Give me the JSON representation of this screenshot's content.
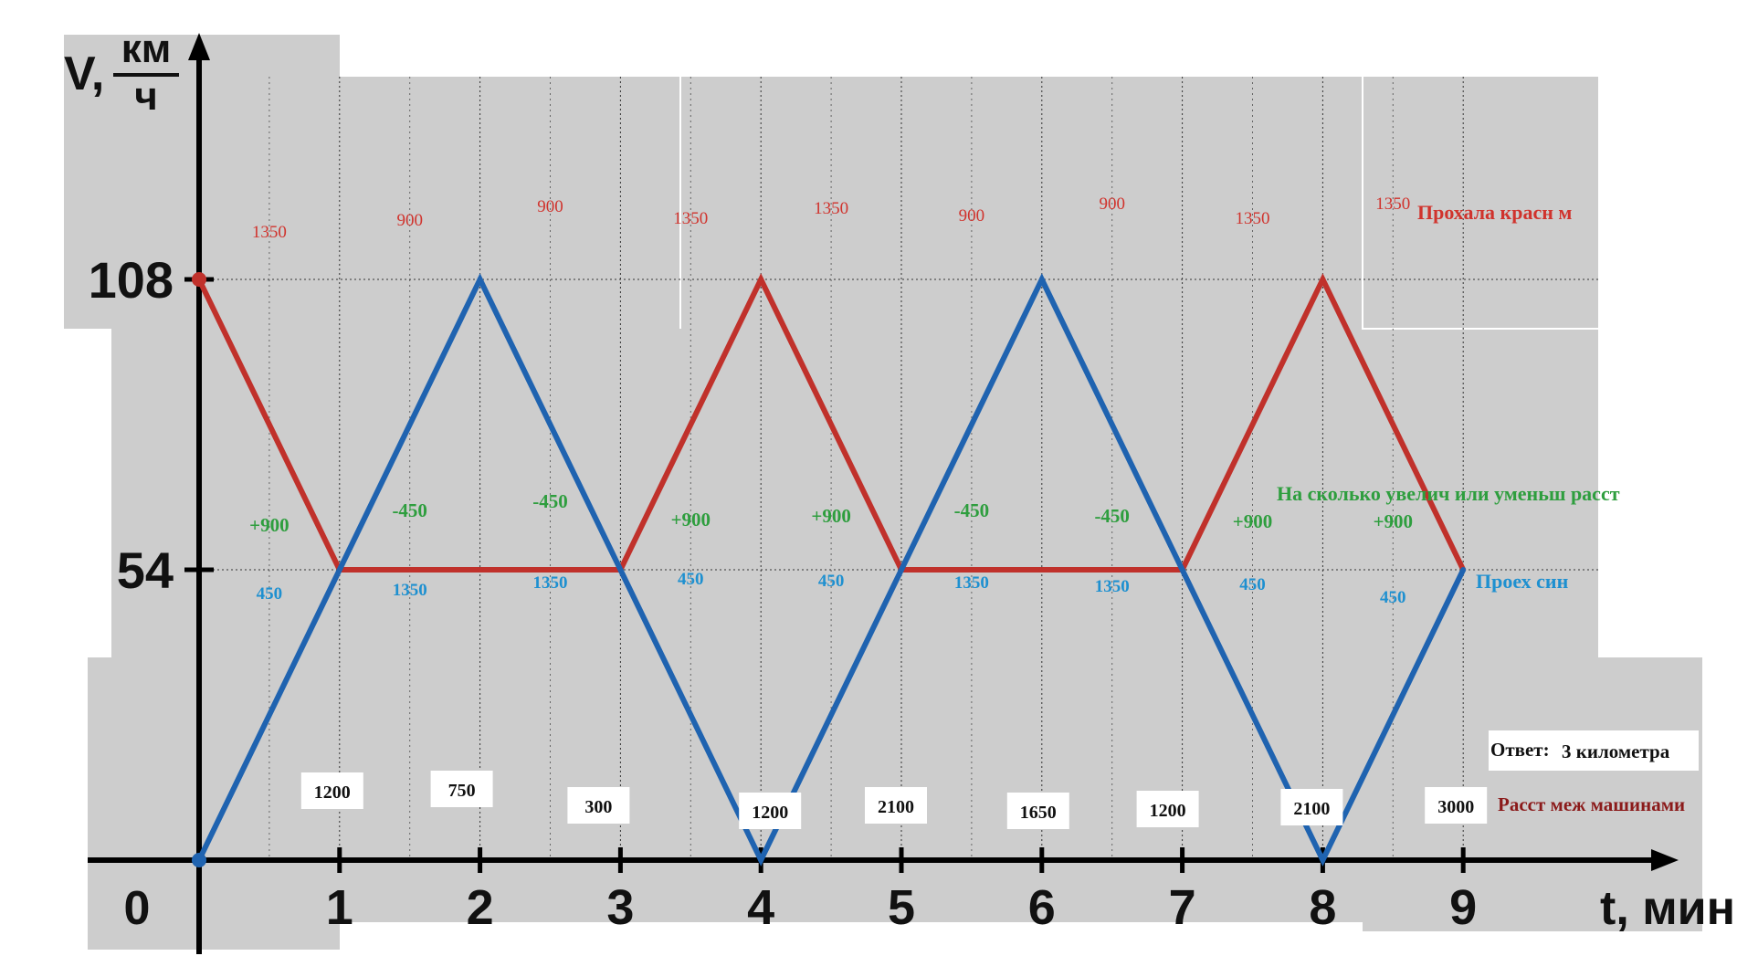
{
  "chart_data": {
    "type": "line",
    "xlabel": "t, мин",
    "ylabel_main": "V,",
    "ylabel_unit_num": "км",
    "ylabel_unit_den": "ч",
    "origin_label": "0",
    "x_ticks": [
      "1",
      "2",
      "3",
      "4",
      "5",
      "6",
      "7",
      "8",
      "9"
    ],
    "y_ticks": [
      "54",
      "108"
    ],
    "xlim": [
      0,
      9
    ],
    "ylim": [
      0,
      108
    ],
    "grid": true,
    "series": [
      {
        "color": "#c0312b",
        "points": [
          [
            0,
            108
          ],
          [
            1,
            54
          ],
          [
            2,
            54
          ],
          [
            3,
            54
          ],
          [
            4,
            108
          ],
          [
            5,
            54
          ],
          [
            6,
            54
          ],
          [
            7,
            54
          ],
          [
            8,
            108
          ],
          [
            9,
            54
          ]
        ]
      },
      {
        "color": "#1f63b0",
        "points": [
          [
            0,
            0
          ],
          [
            1,
            54
          ],
          [
            2,
            108
          ],
          [
            3,
            54
          ],
          [
            4,
            0
          ],
          [
            5,
            54
          ],
          [
            6,
            108
          ],
          [
            7,
            54
          ],
          [
            8,
            0
          ],
          [
            9,
            54
          ]
        ]
      }
    ],
    "red_distance_labels": [
      "1350",
      "900",
      "900",
      "1350",
      "1350",
      "900",
      "900",
      "1350",
      "1350"
    ],
    "green_change_labels": [
      "+900",
      "-450",
      "-450",
      "+900",
      "+900",
      "-450",
      "-450",
      "+900",
      "+900"
    ],
    "blue_distance_labels": [
      "450",
      "1350",
      "1350",
      "450",
      "450",
      "1350",
      "1350",
      "450",
      "450"
    ],
    "gap_labels": [
      "1200",
      "750",
      "300",
      "1200",
      "2100",
      "1650",
      "1200",
      "2100",
      "3000"
    ],
    "legend": {
      "red": "Прохала красн м",
      "green": "На сколько увелич или уменьш расст",
      "blue": "Проех син",
      "gap": "Расст меж машинами"
    },
    "answer": {
      "label": "Ответ:",
      "value": "3 километра"
    },
    "colors": {
      "red": "#c0312b",
      "blue": "#1f63b0",
      "green": "#2e9e3e",
      "red_text": "#d0332d",
      "blue_text": "#1e90d0",
      "gap_text": "#8b1a1a",
      "panel": "#cdcdcd"
    }
  }
}
